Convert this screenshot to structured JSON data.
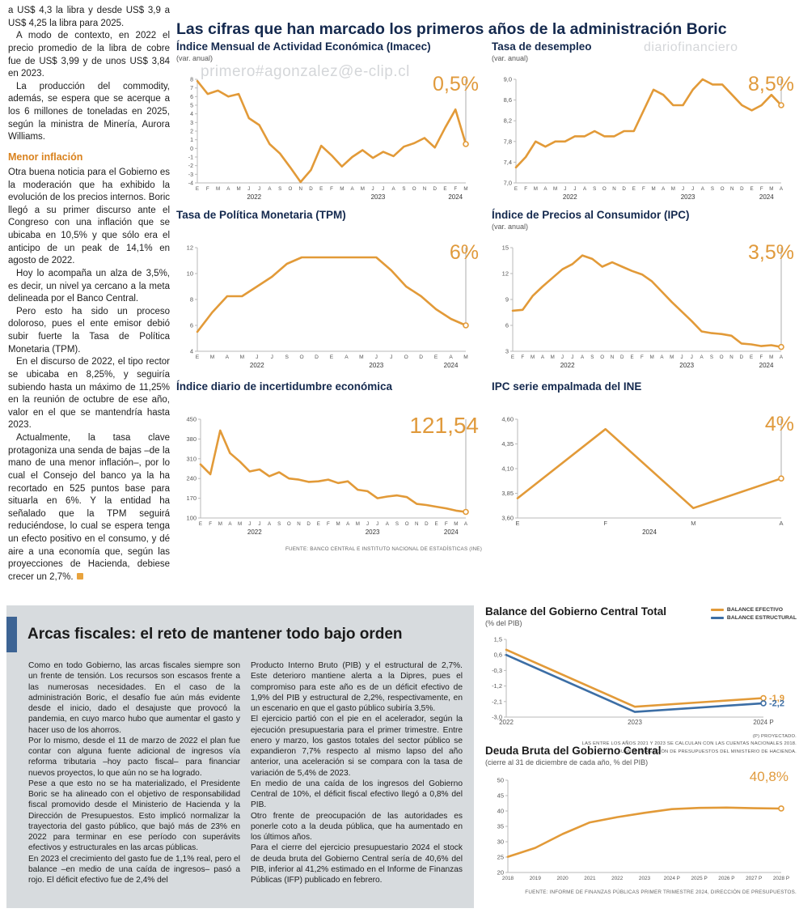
{
  "page": {
    "main_title": "Las cifras que han marcado los primeros años de la administración Boric",
    "watermark_email": "primero#agonzalez@e-clip.cl",
    "watermark_site": "diariofinanciero",
    "watermark_email2": "mero#agonzalez@e-clip.cl"
  },
  "left_column": {
    "paragraphs": [
      "a US$ 4,3 la libra y desde US$ 3,9 a US$ 4,25 la libra para 2025.",
      "A modo de contexto, en 2022 el precio promedio de la libra de cobre fue de US$ 3,99 y de unos US$ 3,84 en 2023.",
      "La producción del commodity, además, se espera que se acerque a los 6 millones de toneladas en 2025, según la ministra de Minería, Aurora Williams."
    ],
    "subheading": "Menor inflación",
    "paragraphs2": [
      "Otra buena noticia para el Gobierno es la moderación que ha exhibido la evolución de los precios internos. Boric llegó a su primer discurso ante el Congreso con una inflación que se ubicaba en 10,5% y que sólo era el anticipo de un peak de 14,1% en agosto de 2022.",
      "Hoy lo acompaña un alza de 3,5%, es decir, un nivel ya cercano a la meta delineada por el Banco Central.",
      "Pero esto ha sido un proceso doloroso, pues el ente emisor debió subir fuerte la Tasa de Política Monetaria (TPM).",
      "En el discurso de 2022, el tipo rector se ubicaba en 8,25%, y seguiría subiendo hasta un máximo de 11,25% en la reunión de octubre de ese año, valor en el que se mantendría hasta 2023.",
      "Actualmente, la tasa clave protagoniza una senda de bajas –de la mano de una menor inflación–, por lo cual el Consejo del banco ya la ha recortado en 525 puntos base para situarla en 6%. Y la entidad ha señalado que la TPM seguirá reduciéndose, lo cual se espera tenga un efecto positivo en el consumo, y dé aire a una economía que, según las proyecciones de Hacienda, debiese crecer un 2,7%."
    ]
  },
  "fiscal_box": {
    "title": "Arcas fiscales: el reto de mantener todo bajo orden",
    "col1": [
      "Como en todo Gobierno, las arcas fiscales siempre son un frente de tensión. Los recursos son escasos frente a las numerosas necesidades. En el caso de la administración Boric, el desafío fue aún más evidente desde el inicio, dado el desajuste que provocó la pandemia, en cuyo marco hubo que aumentar el gasto y hacer uso de los ahorros.",
      "Por lo mismo, desde el 11 de marzo de 2022 el plan fue contar con alguna fuente adicional de ingresos vía reforma tributaria –hoy pacto fiscal– para financiar nuevos proyectos, lo que aún no se ha logrado.",
      "Pese a que esto no se ha materializado, el Presidente Boric se ha alineado con el objetivo de responsabilidad fiscal promovido desde el Ministerio de Hacienda y la Dirección de Presupuestos. Esto implicó normalizar la trayectoria del gasto público, que bajó más de 23% en 2022 para terminar en ese período con superávits efectivos y estructurales en las arcas públicas.",
      "En 2023 el crecimiento del gasto fue de 1,1% real, pero el balance –en medio de una caída de ingresos– pasó a rojo. El déficit efectivo fue de 2,4% del"
    ],
    "col2": [
      "Producto Interno Bruto (PIB) y el estructural de 2,7%. Este deterioro mantiene alerta a la Dipres, pues el compromiso para este año es de un déficit efectivo de 1,9% del PIB y estructural de 2,2%, respectivamente, en un escenario en que el gasto público subiría 3,5%.",
      "El ejercicio partió con el pie en el acelerador, según la ejecución presupuestaria para el primer trimestre. Entre enero y marzo, los gastos totales del sector público se expandieron 7,7% respecto al mismo lapso del año anterior, una aceleración si se compara con la tasa de variación de 5,4% de 2023.",
      "En medio de una caída de los ingresos del Gobierno Central de 10%, el déficit fiscal efectivo llegó a 0,8% del PIB.",
      "Otro frente de preocupación de las autoridades es ponerle coto a la deuda pública, que ha aumentado en los últimos años.",
      "Para el cierre del ejercicio presupuestario 2024 el stock de deuda bruta del Gobierno Central sería de 40,6% del PIB, inferior al 41,2% estimado en el Informe de Finanzas Públicas (IFP) publicado en febrero."
    ]
  },
  "chart_data": [
    {
      "type": "line",
      "title": "Índice Mensual de Actividad Económica (Imacec)",
      "subtitle": "(var. anual)",
      "big_label": "0,5%",
      "x": [
        "E",
        "F",
        "M",
        "A",
        "M",
        "J",
        "J",
        "A",
        "S",
        "O",
        "N",
        "D",
        "E",
        "F",
        "M",
        "A",
        "M",
        "J",
        "J",
        "A",
        "S",
        "O",
        "N",
        "D",
        "E",
        "F",
        "M"
      ],
      "year_groups": [
        {
          "label": "2022",
          "from": 0,
          "to": 11
        },
        {
          "label": "2023",
          "from": 12,
          "to": 23
        },
        {
          "label": "2024",
          "from": 24,
          "to": 26
        }
      ],
      "ylim": [
        -4,
        8
      ],
      "yticks": [
        {
          "v": 8,
          "t": "8"
        },
        {
          "v": 7,
          "t": "7"
        },
        {
          "v": 6,
          "t": "6"
        },
        {
          "v": 5,
          "t": "5"
        },
        {
          "v": 4,
          "t": "4"
        },
        {
          "v": 3,
          "t": "3"
        },
        {
          "v": 2,
          "t": "2"
        },
        {
          "v": 1,
          "t": "1"
        },
        {
          "v": 0,
          "t": "0"
        },
        {
          "v": -1,
          "t": "-1"
        },
        {
          "v": -2,
          "t": "-2"
        },
        {
          "v": -3,
          "t": "-3"
        },
        {
          "v": -4,
          "t": "-4"
        }
      ],
      "drop_line": true,
      "series": [
        {
          "name": "Imacec",
          "color": "#e29a38",
          "values": [
            7.8,
            6.3,
            6.7,
            6.0,
            6.3,
            3.5,
            2.7,
            0.5,
            -0.6,
            -2.2,
            -3.9,
            -2.5,
            0.3,
            -0.8,
            -2.1,
            -1.0,
            -0.2,
            -1.1,
            -0.4,
            -0.9,
            0.2,
            0.6,
            1.2,
            0.1,
            2.4,
            4.5,
            0.5
          ]
        }
      ]
    },
    {
      "type": "line",
      "title": "Tasa de desempleo",
      "subtitle": "(var. anual)",
      "big_label": "8,5%",
      "x": [
        "E",
        "F",
        "M",
        "A",
        "M",
        "J",
        "J",
        "A",
        "S",
        "O",
        "N",
        "D",
        "E",
        "F",
        "M",
        "A",
        "M",
        "J",
        "J",
        "A",
        "S",
        "O",
        "N",
        "D",
        "E",
        "F",
        "M",
        "A"
      ],
      "year_groups": [
        {
          "label": "2022",
          "from": 0,
          "to": 11
        },
        {
          "label": "2023",
          "from": 12,
          "to": 23
        },
        {
          "label": "2024",
          "from": 24,
          "to": 27
        }
      ],
      "ylim": [
        7.0,
        9.0
      ],
      "yticks": [
        {
          "v": 9.0,
          "t": "9,0"
        },
        {
          "v": 8.6,
          "t": "8,6"
        },
        {
          "v": 8.2,
          "t": "8,2"
        },
        {
          "v": 7.8,
          "t": "7,8"
        },
        {
          "v": 7.4,
          "t": "7,4"
        },
        {
          "v": 7.0,
          "t": "7,0"
        }
      ],
      "drop_line": true,
      "series": [
        {
          "name": "Tasa de desempleo",
          "color": "#e29a38",
          "values": [
            7.3,
            7.5,
            7.8,
            7.7,
            7.8,
            7.8,
            7.9,
            7.9,
            8.0,
            7.9,
            7.9,
            8.0,
            8.0,
            8.4,
            8.8,
            8.7,
            8.5,
            8.5,
            8.8,
            9.0,
            8.9,
            8.9,
            8.7,
            8.5,
            8.4,
            8.5,
            8.7,
            8.5
          ]
        }
      ]
    },
    {
      "type": "line",
      "title": "Tasa de Política Monetaria (TPM)",
      "subtitle": "",
      "big_label": "6%",
      "x": [
        "E",
        "M",
        "A",
        "M",
        "J",
        "J",
        "S",
        "O",
        "D",
        "E",
        "A",
        "M",
        "J",
        "J",
        "O",
        "D",
        "E",
        "A",
        "M"
      ],
      "year_groups": [
        {
          "label": "2022",
          "from": 0,
          "to": 8
        },
        {
          "label": "2023",
          "from": 9,
          "to": 15
        },
        {
          "label": "2024",
          "from": 16,
          "to": 18
        }
      ],
      "ylim": [
        4,
        12
      ],
      "yticks": [
        {
          "v": 12,
          "t": "12"
        },
        {
          "v": 10,
          "t": "10"
        },
        {
          "v": 8,
          "t": "8"
        },
        {
          "v": 6,
          "t": "6"
        },
        {
          "v": 4,
          "t": "4"
        }
      ],
      "drop_line": true,
      "series": [
        {
          "name": "TPM",
          "color": "#e29a38",
          "values": [
            5.5,
            7.0,
            8.25,
            8.25,
            9.0,
            9.75,
            10.75,
            11.25,
            11.25,
            11.25,
            11.25,
            11.25,
            11.25,
            10.25,
            9.0,
            8.25,
            7.25,
            6.5,
            6.0
          ]
        }
      ]
    },
    {
      "type": "line",
      "title": "Índice de Precios al Consumidor (IPC)",
      "subtitle": "(var. anual)",
      "big_label": "3,5%",
      "x": [
        "E",
        "F",
        "M",
        "A",
        "M",
        "J",
        "J",
        "A",
        "S",
        "O",
        "N",
        "D",
        "E",
        "F",
        "M",
        "A",
        "M",
        "J",
        "J",
        "A",
        "S",
        "O",
        "N",
        "D",
        "E",
        "F",
        "M",
        "A"
      ],
      "year_groups": [
        {
          "label": "2022",
          "from": 0,
          "to": 11
        },
        {
          "label": "2023",
          "from": 12,
          "to": 23
        },
        {
          "label": "2024",
          "from": 24,
          "to": 27
        }
      ],
      "ylim": [
        3,
        15
      ],
      "yticks": [
        {
          "v": 15,
          "t": "15"
        },
        {
          "v": 12,
          "t": "12"
        },
        {
          "v": 9,
          "t": "9"
        },
        {
          "v": 6,
          "t": "6"
        },
        {
          "v": 3,
          "t": "3"
        }
      ],
      "drop_line": true,
      "series": [
        {
          "name": "IPC",
          "color": "#e29a38",
          "values": [
            7.7,
            7.8,
            9.4,
            10.5,
            11.5,
            12.5,
            13.1,
            14.1,
            13.7,
            12.8,
            13.3,
            12.8,
            12.3,
            11.9,
            11.1,
            9.9,
            8.7,
            7.6,
            6.5,
            5.3,
            5.1,
            5.0,
            4.8,
            3.9,
            3.8,
            3.6,
            3.7,
            3.5
          ]
        }
      ]
    },
    {
      "type": "line",
      "title": "Índice diario de incertidumbre económica",
      "subtitle": "",
      "big_label": "121,54",
      "source": "FUENTE: BANCO CENTRAL E INSTITUTO NACIONAL DE ESTADÍSTICAS (INE)",
      "x": [
        "E",
        "F",
        "M",
        "A",
        "M",
        "J",
        "J",
        "A",
        "S",
        "O",
        "N",
        "D",
        "E",
        "F",
        "M",
        "A",
        "M",
        "J",
        "J",
        "A",
        "S",
        "O",
        "N",
        "D",
        "E",
        "F",
        "M",
        "A"
      ],
      "year_groups": [
        {
          "label": "2022",
          "from": 0,
          "to": 11
        },
        {
          "label": "2023",
          "from": 12,
          "to": 23
        },
        {
          "label": "2024",
          "from": 24,
          "to": 27
        }
      ],
      "ylim": [
        100,
        450
      ],
      "yticks": [
        {
          "v": 450,
          "t": "450"
        },
        {
          "v": 380,
          "t": "380"
        },
        {
          "v": 310,
          "t": "310"
        },
        {
          "v": 240,
          "t": "240"
        },
        {
          "v": 170,
          "t": "170"
        },
        {
          "v": 100,
          "t": "100"
        }
      ],
      "drop_line": true,
      "series": [
        {
          "name": "Incertidumbre económica",
          "color": "#e29a38",
          "values": [
            290,
            255,
            410,
            330,
            300,
            265,
            272,
            248,
            262,
            240,
            236,
            228,
            230,
            236,
            224,
            230,
            200,
            195,
            170,
            176,
            180,
            174,
            150,
            146,
            140,
            134,
            126,
            121.54
          ]
        }
      ]
    },
    {
      "type": "line",
      "title": "IPC serie empalmada del INE",
      "subtitle": "",
      "big_label": "4%",
      "x": [
        "E",
        "F",
        "M",
        "A"
      ],
      "year_groups": [
        {
          "label": "2024",
          "from": 0,
          "to": 3
        }
      ],
      "ylim": [
        3.6,
        4.6
      ],
      "yticks": [
        {
          "v": 4.6,
          "t": "4,60"
        },
        {
          "v": 4.35,
          "t": "4,35"
        },
        {
          "v": 4.1,
          "t": "4,10"
        },
        {
          "v": 3.85,
          "t": "3,85"
        },
        {
          "v": 3.6,
          "t": "3,60"
        }
      ],
      "drop_line": true,
      "series": [
        {
          "name": "IPC serie empalmada",
          "color": "#e29a38",
          "values": [
            3.8,
            4.5,
            3.7,
            4.0
          ]
        }
      ]
    },
    {
      "type": "line",
      "title": "Balance del Gobierno Central Total",
      "subtitle": "(% del PIB)",
      "legend": [
        "BALANCE EFECTIVO",
        "BALANCE ESTRUCTURAL"
      ],
      "footnotes": [
        "(P) PROYECTADO.",
        "LAS ENTRE LOS AÑOS 2021 Y 2023 SE CALCULAN CON LAS CUENTAS NACIONALES 2018.",
        "FUENTE: DIRECCIÓN DE PRESUPUESTOS DEL MINISTERIO DE HACIENDA."
      ],
      "x": [
        "2022",
        "2023",
        "2024 P"
      ],
      "ylim": [
        -3.0,
        1.5
      ],
      "yticks": [
        {
          "v": 1.5,
          "t": "1,5"
        },
        {
          "v": 0.6,
          "t": "0,6"
        },
        {
          "v": -0.3,
          "t": "-0,3"
        },
        {
          "v": -1.2,
          "t": "-1,2"
        },
        {
          "v": -2.1,
          "t": "-2,1"
        },
        {
          "v": -3.0,
          "t": "-3,0"
        }
      ],
      "drop_line": false,
      "series": [
        {
          "name": "Balance efectivo",
          "color": "#e29a38",
          "end_label": "-1,9",
          "values": [
            0.9,
            -2.4,
            -1.9
          ]
        },
        {
          "name": "Balance estructural",
          "color": "#3c6ea5",
          "end_label": "-2,2",
          "values": [
            0.6,
            -2.7,
            -2.2
          ]
        }
      ]
    },
    {
      "type": "line",
      "title": "Deuda Bruta del Gobierno Central",
      "subtitle": "(cierre al 31 de diciembre de cada año, % del PIB)",
      "big_label": "40,8%",
      "source": "FUENTE: INFORME DE FINANZAS PÚBLICAS PRIMER TRIMESTRE 2024, DIRECCIÓN DE PRESUPUESTOS.",
      "x": [
        "2018",
        "2019",
        "2020",
        "2021",
        "2022",
        "2023",
        "2024 P",
        "2025 P",
        "2026 P",
        "2027 P",
        "2028 P"
      ],
      "ylim": [
        20,
        50
      ],
      "yticks": [
        {
          "v": 50,
          "t": "50"
        },
        {
          "v": 45,
          "t": "45"
        },
        {
          "v": 40,
          "t": "40"
        },
        {
          "v": 35,
          "t": "35"
        },
        {
          "v": 30,
          "t": "30"
        },
        {
          "v": 25,
          "t": "25"
        },
        {
          "v": 20,
          "t": "20"
        }
      ],
      "drop_line": false,
      "series": [
        {
          "name": "Deuda bruta",
          "color": "#e29a38",
          "values": [
            25.1,
            28.0,
            32.5,
            36.3,
            38.0,
            39.4,
            40.6,
            41.0,
            41.1,
            40.9,
            40.8
          ]
        }
      ]
    }
  ]
}
